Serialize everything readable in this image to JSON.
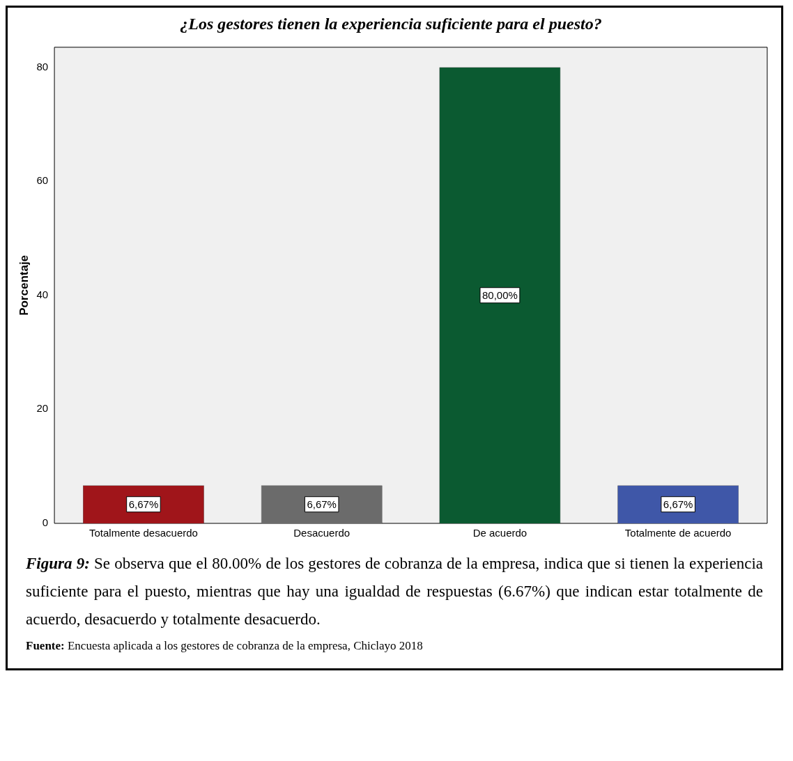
{
  "chart_data": {
    "type": "bar",
    "title": "¿Los gestores tienen la experiencia suficiente para el puesto?",
    "ylabel": "Porcentaje",
    "categories": [
      "Totalmente desacuerdo",
      "Desacuerdo",
      "De acuerdo",
      "Totalmente de acuerdo"
    ],
    "values": [
      6.67,
      6.67,
      80,
      6.67
    ],
    "colors": [
      "#a0151a",
      "#6b6b6b",
      "#0b5a31",
      "#3f57a8"
    ],
    "value_labels": [
      "6,67%",
      "6,67%",
      "80,00%",
      "6,67%"
    ],
    "ylim": [
      0,
      83.5
    ],
    "yticks": [
      0,
      20,
      40,
      60,
      80
    ],
    "grid": false,
    "legend": false,
    "annotations": [
      "Figura 9: Se observa que el 80.00% de los gestores de cobranza de la empresa, indica que si tienen la experiencia suficiente para el puesto, mientras que hay una igualdad de respuestas (6.67%) que indican estar totalmente de acuerdo, desacuerdo y totalmente desacuerdo.",
      "Fuente: Encuesta aplicada a los gestores de cobranza de la empresa, Chiclayo 2018"
    ]
  }
}
